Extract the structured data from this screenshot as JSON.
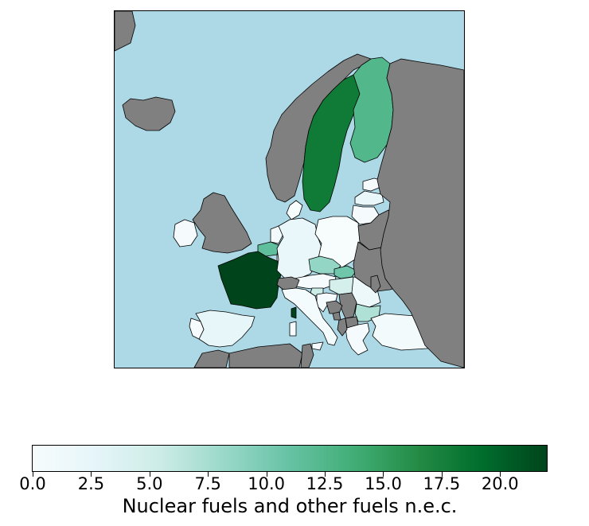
{
  "map": {
    "colors": {
      "sea": "#add8e6",
      "non_eu_land": "#808080",
      "border": "#000000"
    },
    "countries": [
      {
        "name": "Iceland",
        "status": "no-data"
      },
      {
        "name": "Norway",
        "status": "no-data"
      },
      {
        "name": "Sweden",
        "value": 18.0
      },
      {
        "name": "Finland",
        "value": 12.5
      },
      {
        "name": "Estonia",
        "value": 0.3
      },
      {
        "name": "Latvia",
        "value": 2.0
      },
      {
        "name": "Lithuania",
        "value": 0.3
      },
      {
        "name": "Denmark",
        "value": 0.0
      },
      {
        "name": "Ireland",
        "value": 0.3
      },
      {
        "name": "United Kingdom",
        "status": "no-data"
      },
      {
        "name": "Netherlands",
        "value": 0.8
      },
      {
        "name": "Belgium",
        "value": 11.5
      },
      {
        "name": "Luxembourg",
        "value": 0.0
      },
      {
        "name": "France",
        "value": 22.0
      },
      {
        "name": "Germany",
        "value": 2.0
      },
      {
        "name": "Poland",
        "value": 0.0
      },
      {
        "name": "Czechia",
        "value": 8.5
      },
      {
        "name": "Slovakia",
        "value": 10.5
      },
      {
        "name": "Austria",
        "value": 0.3
      },
      {
        "name": "Switzerland",
        "status": "no-data"
      },
      {
        "name": "Hungary",
        "value": 4.5
      },
      {
        "name": "Slovenia",
        "value": 5.5
      },
      {
        "name": "Croatia",
        "value": 0.3
      },
      {
        "name": "Romania",
        "value": 1.5
      },
      {
        "name": "Bulgaria",
        "value": 7.0
      },
      {
        "name": "Greece",
        "value": 0.3
      },
      {
        "name": "Italy",
        "value": 0.5
      },
      {
        "name": "Spain",
        "value": 2.5
      },
      {
        "name": "Portugal",
        "value": 0.2
      },
      {
        "name": "Türkiye",
        "value": 0.6
      },
      {
        "name": "Belarus",
        "status": "no-data"
      },
      {
        "name": "Ukraine",
        "status": "no-data"
      },
      {
        "name": "Russia",
        "status": "no-data"
      },
      {
        "name": "Serbia",
        "status": "no-data"
      },
      {
        "name": "Bosnia and Herzegovina",
        "status": "no-data"
      },
      {
        "name": "Albania",
        "status": "no-data"
      },
      {
        "name": "North Macedonia",
        "status": "no-data"
      },
      {
        "name": "Montenegro",
        "status": "no-data"
      },
      {
        "name": "Moldova",
        "status": "no-data"
      },
      {
        "name": "Morocco",
        "status": "no-data"
      },
      {
        "name": "Algeria",
        "status": "no-data"
      },
      {
        "name": "Tunisia",
        "status": "no-data"
      },
      {
        "name": "Greenland",
        "status": "no-data"
      }
    ]
  },
  "colorbar": {
    "label": "Nuclear fuels and other fuels n.e.c.",
    "vmin": 0.0,
    "vmax": 22.0,
    "ticks": [
      "0.0",
      "2.5",
      "5.0",
      "7.5",
      "10.0",
      "12.5",
      "15.0",
      "17.5",
      "20.0"
    ],
    "tick_values": [
      0.0,
      2.5,
      5.0,
      7.5,
      10.0,
      12.5,
      15.0,
      17.5,
      20.0
    ],
    "colormap": "BuGn",
    "stops": [
      "#f7fcfd",
      "#e5f5f9",
      "#ccece6",
      "#99d8c9",
      "#66c2a4",
      "#41ae76",
      "#238b45",
      "#006d2c",
      "#00441b"
    ]
  }
}
